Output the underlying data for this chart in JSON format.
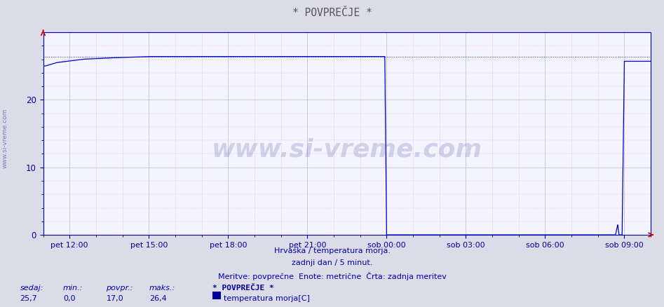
{
  "title": "* POVPREČJE *",
  "subtitle1": "Hrvaška / temperatura morja.",
  "subtitle2": "zadnji dan / 5 minut.",
  "subtitle3": "Meritve: povprečne  Enote: metrične  Črta: zadnja meritev",
  "legend_title": "* POVPREČJE *",
  "legend_label": "temperatura morja[C]",
  "ylabel_left": "www.si-vreme.com",
  "stats_labels": [
    "sedaj:",
    "min.:",
    "povpr.:",
    "maks.:"
  ],
  "stats_values": [
    "25,7",
    "0,0",
    "17,0",
    "26,4"
  ],
  "x_tick_labels": [
    "pet 12:00",
    "pet 15:00",
    "pet 18:00",
    "pet 21:00",
    "sob 00:00",
    "sob 03:00",
    "sob 06:00",
    "sob 09:00"
  ],
  "x_tick_minutes": [
    60,
    240,
    420,
    600,
    780,
    960,
    1140,
    1320
  ],
  "total_minutes": 1380,
  "ylim": [
    0,
    30
  ],
  "yticks": [
    0,
    10,
    20
  ],
  "bg_color": "#dcdce8",
  "plot_bg_color": "#f4f4ff",
  "grid_color_major": "#b8b8d8",
  "grid_color_minor": "#e8c8c8",
  "line_color": "#0000cc",
  "dotted_line_color": "#0000aa",
  "axis_color": "#0000aa",
  "text_color": "#0000aa",
  "title_color": "#555555",
  "watermark_text": "www.si-vreme.com",
  "watermark_color": "#6666aa",
  "legend_color": "#000099",
  "legend_box_color": "#000099",
  "red_color": "#cc0000"
}
